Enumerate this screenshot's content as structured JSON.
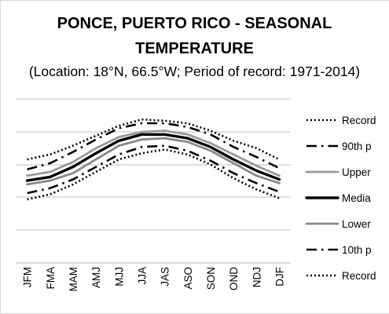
{
  "chart_data": {
    "type": "line",
    "title_line1": "PONCE, PUERTO RICO - SEASONAL",
    "title_line2": "TEMPERATURE",
    "subtitle": "(Location: 18°N, 66.5°W; Period of record: 1971-2014)",
    "categories": [
      "JFM",
      "FMA",
      "MAM",
      "AMJ",
      "MJJ",
      "JJA",
      "JAS",
      "ASO",
      "SON",
      "OND",
      "NDJ",
      "DJF"
    ],
    "ylim": [
      0,
      1
    ],
    "grid": true,
    "legend_position": "right",
    "series": [
      {
        "name": "Record",
        "style": "dotted",
        "color": "#000000",
        "values": [
          0.71,
          0.75,
          0.82,
          0.9,
          0.98,
          1.03,
          1.02,
          1.0,
          0.94,
          0.86,
          0.8,
          0.71
        ]
      },
      {
        "name": "90th p",
        "style": "dashdot",
        "color": "#000000",
        "values": [
          0.63,
          0.68,
          0.77,
          0.87,
          0.96,
          1.0,
          1.0,
          0.97,
          0.91,
          0.81,
          0.73,
          0.64
        ]
      },
      {
        "name": "Upper",
        "style": "solid",
        "color": "#999999",
        "values": [
          0.58,
          0.61,
          0.69,
          0.8,
          0.89,
          0.93,
          0.94,
          0.91,
          0.84,
          0.75,
          0.66,
          0.58
        ]
      },
      {
        "name": "Media",
        "style": "solid-bold",
        "color": "#000000",
        "values": [
          0.54,
          0.57,
          0.65,
          0.76,
          0.86,
          0.91,
          0.91,
          0.88,
          0.81,
          0.71,
          0.62,
          0.55
        ]
      },
      {
        "name": "Lower",
        "style": "solid",
        "color": "#888888",
        "values": [
          0.51,
          0.54,
          0.6,
          0.71,
          0.82,
          0.87,
          0.88,
          0.85,
          0.78,
          0.68,
          0.58,
          0.52
        ]
      },
      {
        "name": "10th p",
        "style": "dashdot",
        "color": "#000000",
        "values": [
          0.44,
          0.48,
          0.55,
          0.65,
          0.75,
          0.81,
          0.82,
          0.78,
          0.7,
          0.6,
          0.52,
          0.45
        ]
      },
      {
        "name": "Record",
        "style": "dotted",
        "color": "#000000",
        "values": [
          0.39,
          0.43,
          0.51,
          0.61,
          0.71,
          0.76,
          0.79,
          0.75,
          0.67,
          0.56,
          0.47,
          0.4
        ]
      }
    ]
  }
}
